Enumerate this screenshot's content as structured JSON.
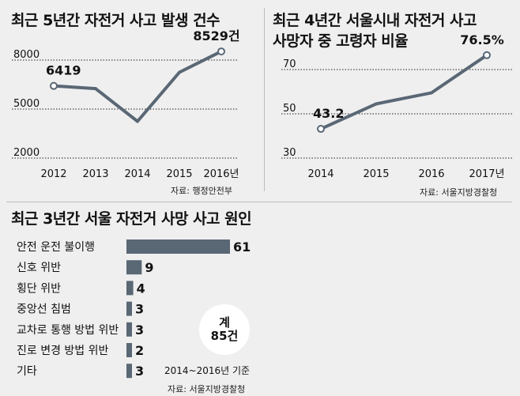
{
  "chart_data": [
    {
      "type": "line",
      "title": "최근 5년간 자전거 사고 발생 건수",
      "x": [
        "2012",
        "2013",
        "2014",
        "2015",
        "2016년"
      ],
      "values": [
        6419,
        6250,
        4250,
        7250,
        8529
      ],
      "point_labels": [
        "6419",
        "",
        "",
        "",
        "8529건"
      ],
      "ytick_labels": [
        "2000",
        "5000",
        "8000"
      ],
      "yticks": [
        2000,
        5000,
        8000
      ],
      "ylim": [
        2000,
        9500
      ],
      "source": "자료: 행정안전부",
      "color": "#5a6775"
    },
    {
      "type": "line",
      "title_lines": [
        "최근 4년간 서울시내 자전거 사고",
        "사망자 중 고령자 비율"
      ],
      "x": [
        "2014",
        "2015",
        "2016",
        "2017년"
      ],
      "values": [
        43.2,
        54.5,
        59.5,
        76.5
      ],
      "point_labels": [
        "43.2",
        "",
        "",
        "76.5%"
      ],
      "ytick_labels": [
        "30",
        "50",
        "70"
      ],
      "yticks": [
        30,
        50,
        70
      ],
      "ylim": [
        30,
        80
      ],
      "source": "자료: 서울지방경찰청",
      "color": "#5a6775"
    },
    {
      "type": "bar",
      "orientation": "horizontal",
      "title": "최근 3년간 서울 자전거 사망 사고 원인",
      "categories": [
        "안전 운전 불이행",
        "신호 위반",
        "횡단 위반",
        "중앙선 침범",
        "교차로 통행 방법 위반",
        "진로 변경 방법 위반",
        "기타"
      ],
      "values": [
        61,
        9,
        4,
        3,
        3,
        2,
        3
      ],
      "value_labels": [
        "61",
        "9",
        "4",
        "3",
        "3",
        "2",
        "3"
      ],
      "total_label": "계",
      "total_value": "85건",
      "basis": "2014~2016년 기준",
      "source": "자료: 서울지방경찰청",
      "color": "#5a6775"
    }
  ]
}
